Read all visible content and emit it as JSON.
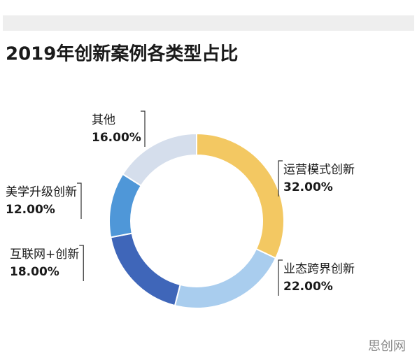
{
  "chart_data": {
    "type": "donut",
    "title": "2019年创新案例各类型占比",
    "categories": [
      "运营模式创新",
      "业态跨界创新",
      "互联网+创新",
      "美学升级创新",
      "其他"
    ],
    "values": [
      32,
      22,
      18,
      12,
      16
    ],
    "value_labels": [
      "32.00%",
      "22.00%",
      "18.00%",
      "12.00%",
      "16.00%"
    ],
    "colors": [
      "#f3c862",
      "#a9cdee",
      "#3f66b9",
      "#4f97d8",
      "#d5deec"
    ]
  },
  "watermark": "思创网"
}
